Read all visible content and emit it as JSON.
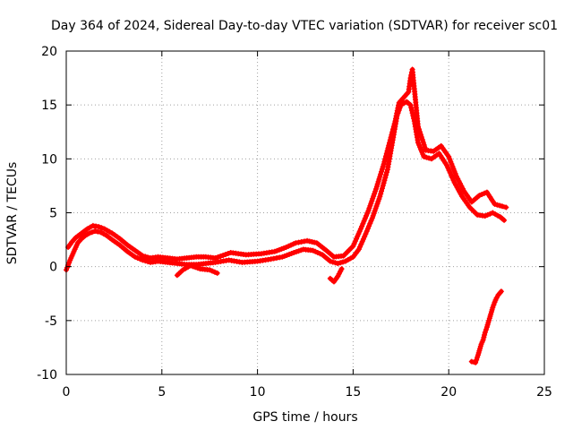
{
  "chart_data": {
    "type": "scatter",
    "title": "Day 364 of 2024, Sidereal Day-to-day VTEC variation (SDTVAR) for receiver sc01",
    "xlabel": "GPS time / hours",
    "ylabel": "SDTVAR / TECUs",
    "xlim": [
      0,
      25
    ],
    "ylim": [
      -10,
      20
    ],
    "xticks": [
      0,
      5,
      10,
      15,
      20,
      25
    ],
    "yticks": [
      -10,
      -5,
      0,
      5,
      10,
      15,
      20
    ],
    "grid": true,
    "marker": "+",
    "series_color": "#ff0000",
    "series": [
      {
        "name": "band-lower",
        "points": [
          [
            0.0,
            -0.3
          ],
          [
            0.2,
            0.6
          ],
          [
            0.4,
            1.4
          ],
          [
            0.6,
            2.2
          ],
          [
            0.8,
            2.6
          ],
          [
            1.0,
            2.9
          ],
          [
            1.2,
            3.1
          ],
          [
            1.5,
            3.3
          ],
          [
            1.8,
            3.2
          ],
          [
            2.1,
            2.9
          ],
          [
            2.4,
            2.5
          ],
          [
            2.8,
            2.0
          ],
          [
            3.2,
            1.4
          ],
          [
            3.6,
            0.9
          ],
          [
            4.0,
            0.6
          ],
          [
            4.4,
            0.4
          ],
          [
            4.8,
            0.5
          ],
          [
            5.3,
            0.4
          ],
          [
            5.8,
            0.3
          ],
          [
            6.3,
            0.2
          ],
          [
            6.8,
            0.2
          ],
          [
            7.3,
            0.3
          ],
          [
            7.8,
            0.4
          ],
          [
            8.5,
            0.6
          ],
          [
            9.2,
            0.4
          ],
          [
            10.0,
            0.5
          ],
          [
            10.7,
            0.7
          ],
          [
            11.3,
            0.9
          ],
          [
            11.9,
            1.3
          ],
          [
            12.4,
            1.6
          ],
          [
            12.9,
            1.5
          ],
          [
            13.4,
            1.1
          ],
          [
            13.8,
            0.5
          ],
          [
            14.2,
            0.3
          ],
          [
            14.6,
            0.5
          ],
          [
            15.0,
            0.9
          ],
          [
            15.3,
            1.6
          ],
          [
            15.6,
            2.8
          ],
          [
            16.0,
            4.5
          ],
          [
            16.4,
            6.5
          ],
          [
            16.8,
            9.0
          ],
          [
            17.1,
            12.0
          ],
          [
            17.3,
            14.0
          ],
          [
            17.5,
            15.0
          ],
          [
            17.8,
            15.3
          ],
          [
            18.0,
            15.0
          ],
          [
            18.2,
            13.5
          ],
          [
            18.4,
            11.5
          ],
          [
            18.7,
            10.2
          ],
          [
            19.1,
            10.0
          ],
          [
            19.5,
            10.5
          ],
          [
            19.9,
            9.4
          ],
          [
            20.3,
            7.8
          ],
          [
            20.7,
            6.5
          ],
          [
            21.1,
            5.5
          ],
          [
            21.5,
            4.8
          ],
          [
            21.9,
            4.7
          ],
          [
            22.3,
            5.0
          ],
          [
            22.7,
            4.6
          ],
          [
            22.9,
            4.3
          ]
        ]
      },
      {
        "name": "band-upper",
        "points": [
          [
            0.1,
            1.8
          ],
          [
            0.3,
            2.3
          ],
          [
            0.5,
            2.7
          ],
          [
            0.8,
            3.1
          ],
          [
            1.1,
            3.5
          ],
          [
            1.4,
            3.8
          ],
          [
            1.7,
            3.7
          ],
          [
            2.0,
            3.5
          ],
          [
            2.4,
            3.1
          ],
          [
            2.8,
            2.6
          ],
          [
            3.2,
            2.0
          ],
          [
            3.6,
            1.5
          ],
          [
            4.0,
            1.0
          ],
          [
            4.4,
            0.8
          ],
          [
            4.8,
            0.9
          ],
          [
            5.3,
            0.8
          ],
          [
            5.8,
            0.7
          ],
          [
            6.3,
            0.8
          ],
          [
            6.8,
            0.9
          ],
          [
            7.3,
            0.9
          ],
          [
            7.8,
            0.8
          ],
          [
            8.6,
            1.3
          ],
          [
            9.4,
            1.1
          ],
          [
            10.2,
            1.2
          ],
          [
            10.9,
            1.4
          ],
          [
            11.5,
            1.8
          ],
          [
            12.0,
            2.2
          ],
          [
            12.6,
            2.4
          ],
          [
            13.1,
            2.2
          ],
          [
            13.6,
            1.5
          ],
          [
            14.0,
            0.9
          ],
          [
            14.5,
            1.0
          ],
          [
            15.0,
            1.9
          ],
          [
            15.4,
            3.5
          ],
          [
            15.8,
            5.2
          ],
          [
            16.2,
            7.2
          ],
          [
            16.6,
            9.5
          ],
          [
            16.9,
            11.5
          ],
          [
            17.2,
            13.5
          ],
          [
            17.4,
            15.2
          ],
          [
            17.7,
            15.8
          ],
          [
            17.9,
            16.2
          ],
          [
            18.0,
            17.5
          ],
          [
            18.1,
            18.3
          ],
          [
            18.2,
            16.5
          ],
          [
            18.4,
            13.0
          ],
          [
            18.8,
            10.8
          ],
          [
            19.2,
            10.7
          ],
          [
            19.6,
            11.2
          ],
          [
            20.0,
            10.2
          ],
          [
            20.4,
            8.4
          ],
          [
            20.8,
            7.0
          ],
          [
            21.2,
            6.0
          ],
          [
            21.6,
            6.6
          ],
          [
            22.0,
            6.9
          ],
          [
            22.4,
            5.8
          ],
          [
            22.8,
            5.6
          ],
          [
            23.0,
            5.5
          ]
        ]
      },
      {
        "name": "segment-low",
        "points": [
          [
            5.8,
            -0.8
          ],
          [
            6.1,
            -0.3
          ],
          [
            6.5,
            0.1
          ],
          [
            7.0,
            -0.2
          ],
          [
            7.5,
            -0.3
          ],
          [
            7.9,
            -0.6
          ]
        ]
      },
      {
        "name": "segment-dip",
        "points": [
          [
            13.8,
            -1.1
          ],
          [
            14.0,
            -1.4
          ],
          [
            14.2,
            -0.9
          ],
          [
            14.4,
            -0.2
          ]
        ]
      },
      {
        "name": "segment-negative",
        "points": [
          [
            21.2,
            -8.8
          ],
          [
            21.4,
            -8.9
          ],
          [
            21.5,
            -8.4
          ],
          [
            21.6,
            -7.8
          ],
          [
            21.7,
            -7.2
          ],
          [
            21.8,
            -6.8
          ],
          [
            21.9,
            -6.1
          ],
          [
            22.0,
            -5.6
          ],
          [
            22.1,
            -5.0
          ],
          [
            22.2,
            -4.4
          ],
          [
            22.3,
            -3.8
          ],
          [
            22.4,
            -3.3
          ],
          [
            22.5,
            -2.9
          ],
          [
            22.6,
            -2.6
          ],
          [
            22.7,
            -2.4
          ],
          [
            22.75,
            -2.3
          ]
        ]
      }
    ]
  }
}
